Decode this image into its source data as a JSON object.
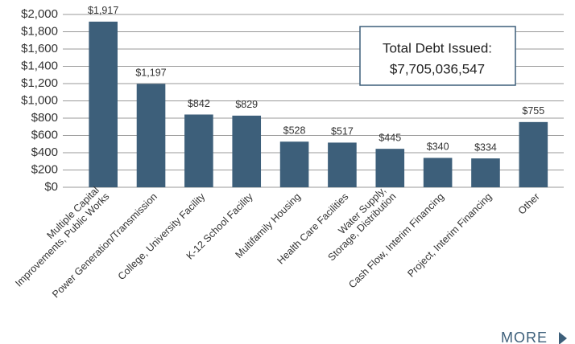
{
  "chart_data": {
    "type": "bar",
    "categories": [
      "Multiple Capital Improvements, Public Works",
      "Power Generation/Transmission",
      "College, University Facility",
      "K-12 School Facility",
      "Multifamily Housing",
      "Health Care Facilities",
      "Water Supply, Storage, Distribution",
      "Cash Flow, Interim Financing",
      "Project, Interim Financing",
      "Other"
    ],
    "values": [
      1917,
      1197,
      842,
      829,
      528,
      517,
      445,
      340,
      334,
      755
    ],
    "value_labels": [
      "$1,917",
      "$1,197",
      "$842",
      "$829",
      "$528",
      "$517",
      "$445",
      "$340",
      "$334",
      "$755"
    ],
    "color": "#3d5f7a",
    "ylim": [
      0,
      2000
    ],
    "yticks": [
      {
        "value": 0,
        "label": "$0"
      },
      {
        "value": 200,
        "label": "$200"
      },
      {
        "value": 400,
        "label": "$400"
      },
      {
        "value": 600,
        "label": "$600"
      },
      {
        "value": 800,
        "label": "$800"
      },
      {
        "value": 1000,
        "label": "$1,000"
      },
      {
        "value": 1200,
        "label": "$1,200"
      },
      {
        "value": 1400,
        "label": "$1,400"
      },
      {
        "value": 1600,
        "label": "$1,600"
      },
      {
        "value": 1800,
        "label": "$1,800"
      },
      {
        "value": 2000,
        "label": "$2,000"
      }
    ],
    "grid": true,
    "annotation": [
      "Total Debt Issued:",
      "$7,705,036,547"
    ]
  },
  "more_button": "MORE"
}
